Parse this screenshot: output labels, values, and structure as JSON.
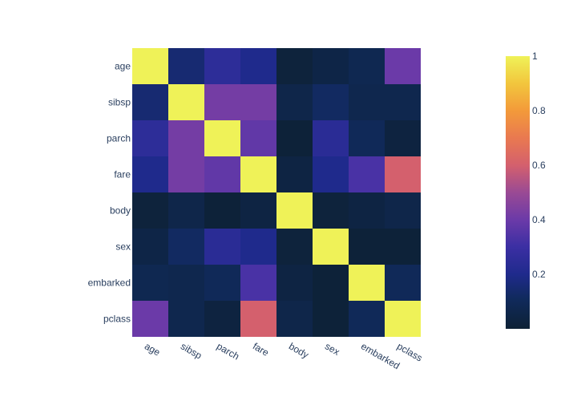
{
  "chart_data": {
    "type": "heatmap",
    "title": "",
    "xlabel": "",
    "ylabel": "",
    "x_categories": [
      "age",
      "sibsp",
      "parch",
      "fare",
      "body",
      "sex",
      "embarked",
      "pclass"
    ],
    "y_categories": [
      "age",
      "sibsp",
      "parch",
      "fare",
      "body",
      "sex",
      "embarked",
      "pclass"
    ],
    "z": [
      [
        1.0,
        0.15,
        0.25,
        0.2,
        0.02,
        0.05,
        0.08,
        0.4
      ],
      [
        0.15,
        1.0,
        0.42,
        0.42,
        0.06,
        0.12,
        0.07,
        0.07
      ],
      [
        0.25,
        0.42,
        1.0,
        0.38,
        0.01,
        0.24,
        0.1,
        0.03
      ],
      [
        0.2,
        0.42,
        0.38,
        1.0,
        0.04,
        0.2,
        0.33,
        0.6
      ],
      [
        0.02,
        0.06,
        0.01,
        0.04,
        1.0,
        0.02,
        0.04,
        0.06
      ],
      [
        0.05,
        0.12,
        0.24,
        0.2,
        0.02,
        1.0,
        0.01,
        0.01
      ],
      [
        0.08,
        0.07,
        0.1,
        0.33,
        0.04,
        0.01,
        1.0,
        0.1
      ],
      [
        0.4,
        0.07,
        0.03,
        0.6,
        0.06,
        0.01,
        0.1,
        1.0
      ]
    ],
    "zmin": 0.0,
    "zmax": 1.0,
    "colorscale": "plasma-like (dark navy -> purple -> red -> yellow)",
    "colorbar": {
      "tick_labels": [
        "0.2",
        "0.4",
        "0.6",
        "0.8",
        "1"
      ],
      "tick_values": [
        0.2,
        0.4,
        0.6,
        0.8,
        1.0
      ]
    },
    "grid": false,
    "legend": "colorbar at right"
  }
}
